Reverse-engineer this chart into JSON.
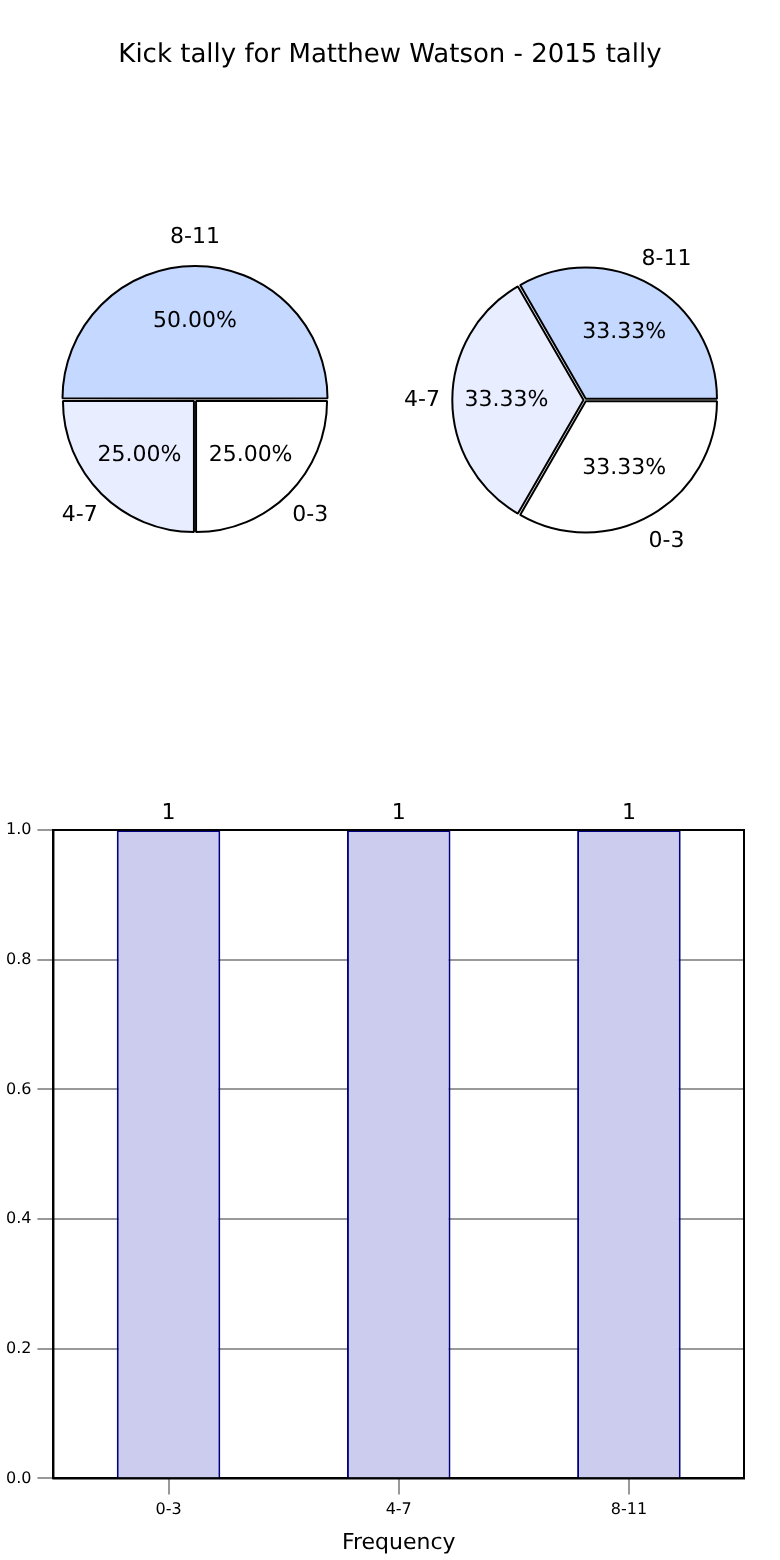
{
  "chart_data": [
    {
      "type": "pie",
      "title": "Kick tally for Matthew Watson - 2015 tally",
      "categories": [
        "0-3",
        "4-7",
        "8-11"
      ],
      "values": [
        25,
        25,
        50
      ],
      "colors": [
        "#ffffff",
        "#e8eeff",
        "#c5d8ff"
      ],
      "value_labels": [
        "25.00%",
        "25.00%",
        "50.00%"
      ]
    },
    {
      "type": "pie",
      "categories": [
        "0-3",
        "4-7",
        "8-11"
      ],
      "values": [
        33.33,
        33.33,
        33.33
      ],
      "colors": [
        "#ffffff",
        "#e8eeff",
        "#c5d8ff"
      ],
      "value_labels": [
        "33.33%",
        "33.33%",
        "33.33%"
      ]
    },
    {
      "type": "bar",
      "xlabel": "Frequency",
      "categories": [
        "0-3",
        "4-7",
        "8-11"
      ],
      "values": [
        1,
        1,
        1
      ],
      "color": "#ccccee",
      "ylim": [
        0,
        1
      ],
      "yticks": [
        {
          "value": 0,
          "label": "0.0"
        },
        {
          "value": 0.2,
          "label": "0.2"
        },
        {
          "value": 0.4,
          "label": "0.4"
        },
        {
          "value": 0.6,
          "label": "0.6"
        },
        {
          "value": 0.8,
          "label": "0.8"
        },
        {
          "value": 1,
          "label": "1.0"
        }
      ],
      "grid": true,
      "data_labels": true
    }
  ]
}
